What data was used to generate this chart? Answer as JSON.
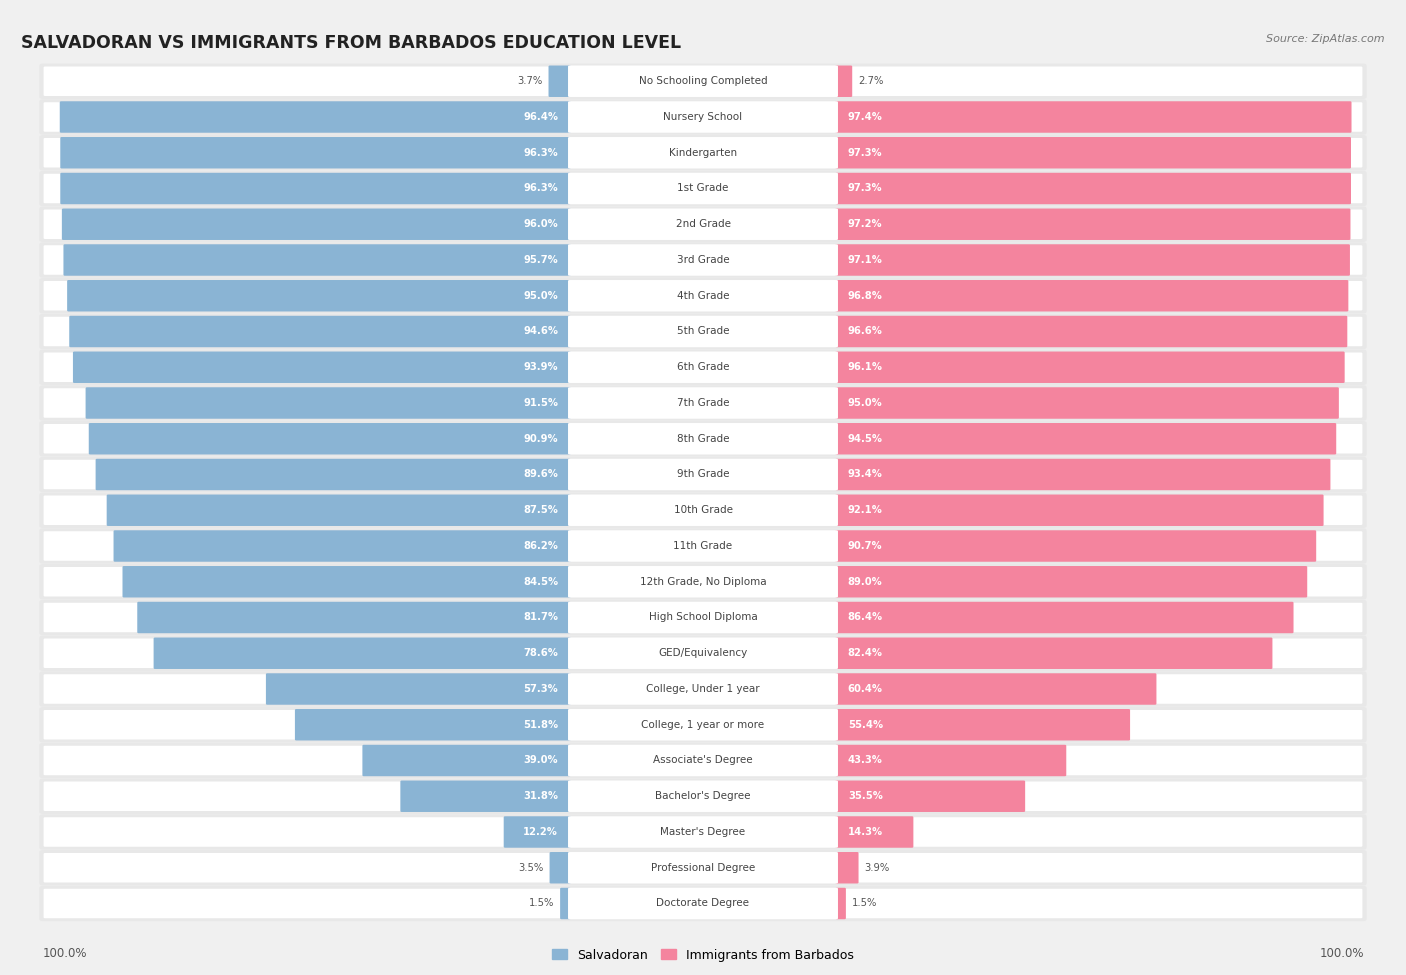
{
  "title": "SALVADORAN VS IMMIGRANTS FROM BARBADOS EDUCATION LEVEL",
  "source": "Source: ZipAtlas.com",
  "categories": [
    "No Schooling Completed",
    "Nursery School",
    "Kindergarten",
    "1st Grade",
    "2nd Grade",
    "3rd Grade",
    "4th Grade",
    "5th Grade",
    "6th Grade",
    "7th Grade",
    "8th Grade",
    "9th Grade",
    "10th Grade",
    "11th Grade",
    "12th Grade, No Diploma",
    "High School Diploma",
    "GED/Equivalency",
    "College, Under 1 year",
    "College, 1 year or more",
    "Associate's Degree",
    "Bachelor's Degree",
    "Master's Degree",
    "Professional Degree",
    "Doctorate Degree"
  ],
  "salvadoran": [
    3.7,
    96.4,
    96.3,
    96.3,
    96.0,
    95.7,
    95.0,
    94.6,
    93.9,
    91.5,
    90.9,
    89.6,
    87.5,
    86.2,
    84.5,
    81.7,
    78.6,
    57.3,
    51.8,
    39.0,
    31.8,
    12.2,
    3.5,
    1.5
  ],
  "barbados": [
    2.7,
    97.4,
    97.3,
    97.3,
    97.2,
    97.1,
    96.8,
    96.6,
    96.1,
    95.0,
    94.5,
    93.4,
    92.1,
    90.7,
    89.0,
    86.4,
    82.4,
    60.4,
    55.4,
    43.3,
    35.5,
    14.3,
    3.9,
    1.5
  ],
  "salvadoran_color": "#8ab4d4",
  "barbados_color": "#f4849e",
  "background_color": "#f0f0f0",
  "bar_bg_color": "#ffffff",
  "row_bg_color": "#e8e8e8",
  "legend_salvadoran": "Salvadoran",
  "legend_barbados": "Immigrants from Barbados",
  "left_footer": "100.0%",
  "right_footer": "100.0%"
}
